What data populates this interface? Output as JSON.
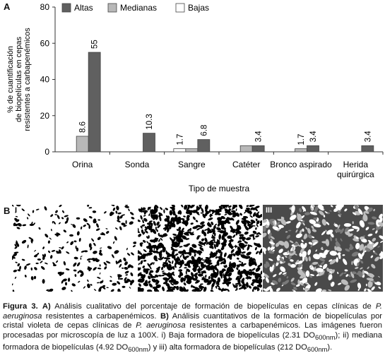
{
  "panel_a_label": "A",
  "panel_b_label": "B",
  "chart_data": {
    "type": "bar",
    "title": "",
    "xlabel": "Tipo de muestra",
    "ylabel_lines": [
      "% de cuantificación",
      "de biopelículas en cepas",
      "resistentes a carbapenémicos"
    ],
    "ylim": [
      0,
      80
    ],
    "yticks": [
      0,
      20,
      40,
      60,
      80
    ],
    "categories": [
      [
        "Orina"
      ],
      [
        "Sonda"
      ],
      [
        "Sangre"
      ],
      [
        "Catéter"
      ],
      [
        "Bronco aspirado"
      ],
      [
        "Herida",
        "quirúrgica"
      ]
    ],
    "series": [
      {
        "name": "Bajas",
        "color": "#ffffff",
        "values": [
          0,
          0,
          1.7,
          0,
          0,
          0
        ],
        "labels": [
          "",
          "",
          "1.7",
          "",
          "",
          ""
        ]
      },
      {
        "name": "Medianas",
        "color": "#b8b8b8",
        "values": [
          8.6,
          0,
          1.7,
          3.4,
          1.7,
          0
        ],
        "labels": [
          "8.6",
          "",
          "",
          "",
          "1.7",
          ""
        ]
      },
      {
        "name": "Altas",
        "color": "#606060",
        "values": [
          55,
          10.3,
          6.8,
          3.4,
          3.4,
          3.4
        ],
        "labels": [
          "55",
          "10.3",
          "6.8",
          "3.4",
          "3.4",
          "3.4"
        ]
      }
    ],
    "legend": {
      "position": "top",
      "order": [
        "Altas",
        "Medianas",
        "Bajas"
      ]
    },
    "grid": false
  },
  "images": [
    {
      "label": "I",
      "style": "sparse-black-on-white"
    },
    {
      "label": "II",
      "style": "dense-black-network"
    },
    {
      "label": "III",
      "style": "white-on-dark"
    }
  ],
  "caption": {
    "fig": "Figura 3.",
    "a_lbl": "A)",
    "a_text1": "Análisis cualitativo del porcentaje de formación de biopelículas en cepas clínicas de",
    "species": "P. aeruginosa",
    "a_text2": "resistentes a carbapenémicos.",
    "b_lbl": "B)",
    "b_text1": "Análisis cuantitativos de la formación de biopelículas por cristal violeta de cepas clínicas de",
    "b_text2": "resistentes a carbapenémicos. Las imágenes fueron procesadas por microscopía de luz a 100X. i) Baja formadora de biopelículas (2.31 DO",
    "sub": "600nm",
    "b_text3": "); ii) mediana formadora de biopelículas (4.92 DO",
    "b_text4": ") y iii) alta formadora de biopelículas (212 DO",
    "b_text5": ")."
  }
}
